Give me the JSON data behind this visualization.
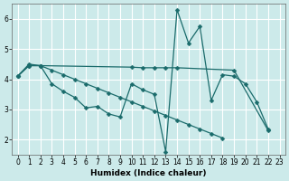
{
  "xlabel": "Humidex (Indice chaleur)",
  "bg_color": "#cceaea",
  "grid_color": "#ffffff",
  "line_color": "#1a6b6b",
  "xlim": [
    -0.5,
    23.5
  ],
  "ylim": [
    1.5,
    6.5
  ],
  "yticks": [
    2,
    3,
    4,
    5,
    6
  ],
  "xticks": [
    0,
    1,
    2,
    3,
    4,
    5,
    6,
    7,
    8,
    9,
    10,
    11,
    12,
    13,
    14,
    15,
    16,
    17,
    18,
    19,
    20,
    21,
    22,
    23
  ],
  "line_volatile_x": [
    0,
    1,
    2,
    3,
    4,
    5,
    6,
    7,
    8,
    9,
    10,
    11,
    12,
    13,
    14,
    15,
    16,
    17,
    18,
    19,
    20,
    21,
    22
  ],
  "line_volatile_y": [
    4.1,
    4.5,
    4.45,
    3.85,
    3.6,
    3.4,
    3.05,
    3.1,
    2.85,
    2.75,
    3.85,
    3.65,
    3.5,
    1.6,
    6.3,
    5.2,
    5.75,
    3.3,
    4.15,
    4.1,
    3.85,
    3.25,
    2.35
  ],
  "line_flat_x": [
    0,
    1,
    2,
    10,
    11,
    12,
    13,
    14,
    19,
    22
  ],
  "line_flat_y": [
    4.1,
    4.45,
    4.45,
    4.4,
    4.38,
    4.38,
    4.38,
    4.38,
    4.3,
    2.3
  ],
  "line_diag_x": [
    0,
    1,
    2,
    3,
    4,
    5,
    6,
    7,
    8,
    9,
    10,
    11,
    12,
    13,
    14,
    15,
    16,
    17,
    18
  ],
  "line_diag_y": [
    4.1,
    4.45,
    4.45,
    4.3,
    4.15,
    4.0,
    3.85,
    3.7,
    3.55,
    3.4,
    3.25,
    3.1,
    2.95,
    2.8,
    2.65,
    2.5,
    2.35,
    2.2,
    2.05
  ]
}
